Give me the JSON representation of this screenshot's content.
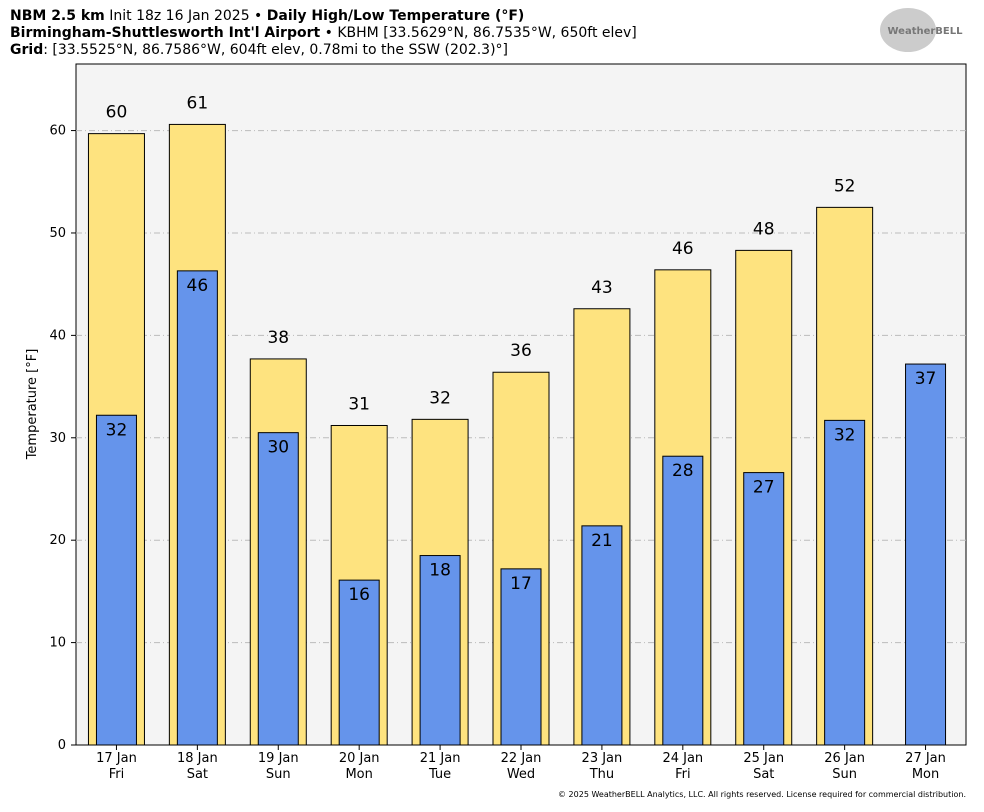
{
  "chart_data": {
    "type": "bar",
    "header": {
      "model": "NBM 2.5 km",
      "init": "Init 18z 16 Jan 2025 •",
      "product": "Daily High/Low Temperature (°F)",
      "station": "Birmingham-Shuttlesworth Int'l Airport",
      "station_info": "• KBHM [33.5629°N, 86.7535°W, 650ft elev]",
      "grid_label": "Grid",
      "grid_info": ": [33.5525°N, 86.7586°W, 604ft elev, 0.78mi to the SSW (202.3)°]"
    },
    "logo": "WeatherBELL",
    "footer": "© 2025 WeatherBELL Analytics, LLC. All rights reserved. License required for commercial distribution.",
    "ylabel": "Temperature [°F]",
    "categories": [
      "17 Jan",
      "18 Jan",
      "19 Jan",
      "20 Jan",
      "21 Jan",
      "22 Jan",
      "23 Jan",
      "24 Jan",
      "25 Jan",
      "26 Jan",
      "27 Jan"
    ],
    "category_days": [
      "Fri",
      "Sat",
      "Sun",
      "Mon",
      "Tue",
      "Wed",
      "Thu",
      "Fri",
      "Sat",
      "Sun",
      "Mon"
    ],
    "series": [
      {
        "color": "#fee37f",
        "values": [
          59.7,
          60.6,
          37.7,
          31.2,
          31.8,
          36.4,
          42.6,
          46.4,
          48.3,
          52.5,
          null
        ],
        "value_labels": [
          "60",
          "61",
          "38",
          "31",
          "32",
          "36",
          "43",
          "46",
          "48",
          "52",
          null
        ]
      },
      {
        "color": "#6594eb",
        "values": [
          32.2,
          46.3,
          30.5,
          16.1,
          18.5,
          17.2,
          21.4,
          28.2,
          26.6,
          31.7,
          37.2
        ],
        "value_labels": [
          "32",
          "46",
          "30",
          "16",
          "18",
          "17",
          "21",
          "28",
          "27",
          "32",
          "37"
        ]
      }
    ],
    "ylim": [
      0,
      66.5
    ],
    "yticks": [
      0,
      10,
      20,
      30,
      40,
      50,
      60
    ],
    "grid": true
  }
}
